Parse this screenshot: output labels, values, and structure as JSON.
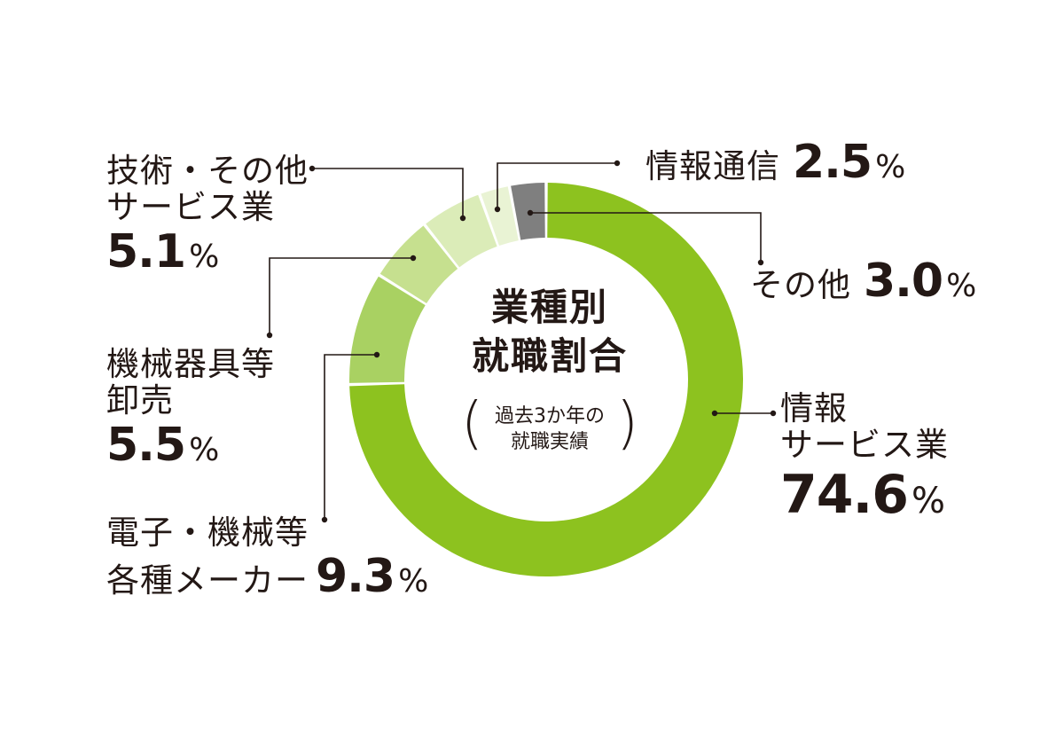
{
  "chart_data": {
    "type": "pie",
    "title": "業種別就職割合",
    "subtitle": "過去3か年の就職実績",
    "unit": "%",
    "slices": [
      {
        "label": "情報サービス業",
        "value": 74.6,
        "display": "74.6",
        "color": "#8dc21f"
      },
      {
        "label": "電子・機械等各種メーカー",
        "value": 9.3,
        "display": "9.3",
        "color": "#a9d162"
      },
      {
        "label": "機械器具等卸売",
        "value": 5.5,
        "display": "5.5",
        "color": "#c6e08f"
      },
      {
        "label": "技術・その他サービス業",
        "value": 5.1,
        "display": "5.1",
        "color": "#dbecb8"
      },
      {
        "label": "情報通信",
        "value": 2.5,
        "display": "2.5",
        "color": "#e9f3d4"
      },
      {
        "label": "その他",
        "value": 3.0,
        "display": "3.0",
        "color": "#7f7f7f"
      }
    ]
  },
  "labels": {
    "info_service": {
      "line1": "情報",
      "line2": "サービス業",
      "value": "74.6",
      "pct": "%"
    },
    "maker": {
      "line1": "電子・機械等",
      "line2": "各種メーカー",
      "value": "9.3",
      "pct": "%"
    },
    "wholesale": {
      "line1": "機械器具等",
      "line2": "卸売",
      "value": "5.5",
      "pct": "%"
    },
    "tech_service": {
      "line1": "技術・その他",
      "line2": "サービス業",
      "value": "5.1",
      "pct": "%"
    },
    "telecom": {
      "line1": "情報通信",
      "value": "2.5",
      "pct": "%"
    },
    "other": {
      "line1": "その他",
      "value": "3.0",
      "pct": "%"
    }
  },
  "center": {
    "title1": "業種別",
    "title2": "就職割合",
    "sub1": "過去3か年の",
    "sub2": "就職実績"
  }
}
